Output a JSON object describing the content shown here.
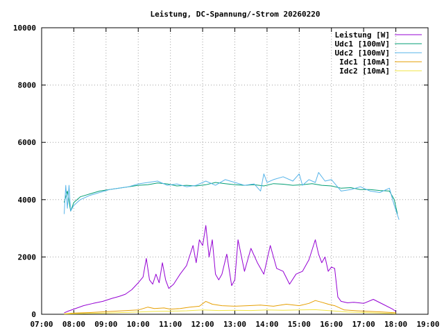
{
  "chart_data": {
    "type": "line",
    "title": "Leistung, DC-Spannung/-Strom 20260220",
    "xlabel": "",
    "ylabel": "",
    "xlim": [
      7.0,
      19.0
    ],
    "ylim": [
      0,
      10000
    ],
    "grid": true,
    "legend_position": "top-right",
    "x_ticks": [
      "07:00",
      "08:00",
      "09:00",
      "10:00",
      "11:00",
      "12:00",
      "13:00",
      "14:00",
      "15:00",
      "16:00",
      "17:00",
      "18:00",
      "19:00"
    ],
    "y_ticks": [
      "0",
      "2000",
      "4000",
      "6000",
      "8000",
      "10000"
    ],
    "series": [
      {
        "name": "Leistung [W]",
        "color": "#9400d3",
        "x": [
          7.7,
          7.8,
          8.0,
          8.3,
          8.6,
          8.9,
          9.2,
          9.4,
          9.6,
          9.8,
          10.0,
          10.15,
          10.25,
          10.35,
          10.45,
          10.55,
          10.65,
          10.75,
          10.85,
          10.95,
          11.1,
          11.3,
          11.5,
          11.7,
          11.8,
          11.9,
          12.0,
          12.1,
          12.2,
          12.3,
          12.4,
          12.5,
          12.6,
          12.75,
          12.9,
          13.0,
          13.1,
          13.3,
          13.5,
          13.7,
          13.9,
          14.1,
          14.3,
          14.5,
          14.7,
          14.9,
          15.1,
          15.3,
          15.5,
          15.6,
          15.7,
          15.8,
          15.9,
          16.0,
          16.1,
          16.2,
          16.3,
          16.5,
          16.7,
          17.0,
          17.3,
          17.6,
          17.9,
          18.0
        ],
        "y": [
          50,
          100,
          180,
          300,
          380,
          450,
          560,
          620,
          700,
          860,
          1100,
          1300,
          1950,
          1200,
          1050,
          1400,
          1100,
          1800,
          1200,
          900,
          1050,
          1400,
          1700,
          2400,
          1800,
          2600,
          2400,
          3100,
          2000,
          2600,
          1400,
          1200,
          1400,
          2100,
          1000,
          1200,
          2600,
          1500,
          2300,
          1800,
          1400,
          2400,
          1600,
          1500,
          1050,
          1400,
          1500,
          1900,
          2600,
          2100,
          1800,
          2000,
          1500,
          1650,
          1600,
          600,
          450,
          400,
          420,
          380,
          520,
          350,
          180,
          100
        ]
      },
      {
        "name": "Udc1 [100mV]",
        "color": "#009e73",
        "x": [
          7.7,
          7.8,
          7.9,
          8.0,
          8.2,
          8.5,
          8.8,
          9.1,
          9.4,
          9.7,
          10.0,
          10.3,
          10.6,
          10.9,
          11.2,
          11.5,
          11.8,
          12.1,
          12.4,
          12.7,
          13.0,
          13.3,
          13.6,
          13.9,
          14.2,
          14.5,
          14.8,
          15.1,
          15.4,
          15.7,
          16.0,
          16.3,
          16.6,
          16.9,
          17.2,
          17.5,
          17.8,
          17.95,
          18.05
        ],
        "y": [
          3900,
          4300,
          3600,
          3900,
          4100,
          4200,
          4300,
          4350,
          4400,
          4450,
          4500,
          4520,
          4580,
          4550,
          4480,
          4500,
          4480,
          4520,
          4600,
          4560,
          4520,
          4500,
          4520,
          4480,
          4560,
          4540,
          4500,
          4520,
          4560,
          4500,
          4480,
          4400,
          4420,
          4350,
          4350,
          4320,
          4300,
          4000,
          3500
        ]
      },
      {
        "name": "Udc2 [100mV]",
        "color": "#56b4e9",
        "x": [
          7.7,
          7.75,
          7.8,
          7.85,
          7.9,
          8.0,
          8.2,
          8.5,
          8.8,
          9.1,
          9.4,
          9.7,
          10.0,
          10.3,
          10.6,
          10.9,
          11.2,
          11.5,
          11.8,
          12.1,
          12.4,
          12.7,
          13.0,
          13.3,
          13.6,
          13.8,
          13.9,
          14.0,
          14.2,
          14.5,
          14.8,
          15.0,
          15.1,
          15.3,
          15.5,
          15.6,
          15.8,
          16.0,
          16.3,
          16.6,
          16.9,
          17.2,
          17.5,
          17.8,
          17.95,
          18.1
        ],
        "y": [
          3500,
          4500,
          3700,
          4500,
          3600,
          3800,
          4000,
          4150,
          4250,
          4350,
          4400,
          4450,
          4550,
          4600,
          4650,
          4500,
          4550,
          4450,
          4500,
          4650,
          4500,
          4700,
          4600,
          4500,
          4550,
          4300,
          4900,
          4600,
          4700,
          4800,
          4650,
          4900,
          4500,
          4700,
          4600,
          4950,
          4650,
          4700,
          4300,
          4350,
          4450,
          4300,
          4250,
          4400,
          3800,
          3300
        ]
      },
      {
        "name": "Idc1 [10mA]",
        "color": "#e69f00",
        "x": [
          7.7,
          8.0,
          8.5,
          9.0,
          9.5,
          10.0,
          10.3,
          10.5,
          10.8,
          11.0,
          11.3,
          11.6,
          11.9,
          12.1,
          12.3,
          12.6,
          13.0,
          13.4,
          13.8,
          14.2,
          14.6,
          15.0,
          15.3,
          15.5,
          15.7,
          15.9,
          16.1,
          16.4,
          16.8,
          17.2,
          17.6,
          18.0
        ],
        "y": [
          20,
          40,
          60,
          90,
          120,
          150,
          250,
          200,
          220,
          180,
          200,
          250,
          280,
          450,
          350,
          300,
          280,
          300,
          320,
          280,
          350,
          300,
          380,
          480,
          420,
          350,
          300,
          150,
          120,
          100,
          80,
          50
        ]
      },
      {
        "name": "Idc2 [10mA]",
        "color": "#f0e442",
        "x": [
          7.7,
          8.0,
          8.5,
          9.0,
          9.5,
          10.0,
          10.5,
          11.0,
          11.5,
          12.0,
          12.5,
          13.0,
          13.5,
          14.0,
          14.5,
          15.0,
          15.5,
          16.0,
          16.5,
          17.0,
          17.5,
          18.0
        ],
        "y": [
          10,
          20,
          30,
          40,
          60,
          80,
          100,
          110,
          120,
          150,
          130,
          140,
          130,
          150,
          140,
          150,
          160,
          120,
          80,
          60,
          40,
          20
        ]
      }
    ]
  }
}
